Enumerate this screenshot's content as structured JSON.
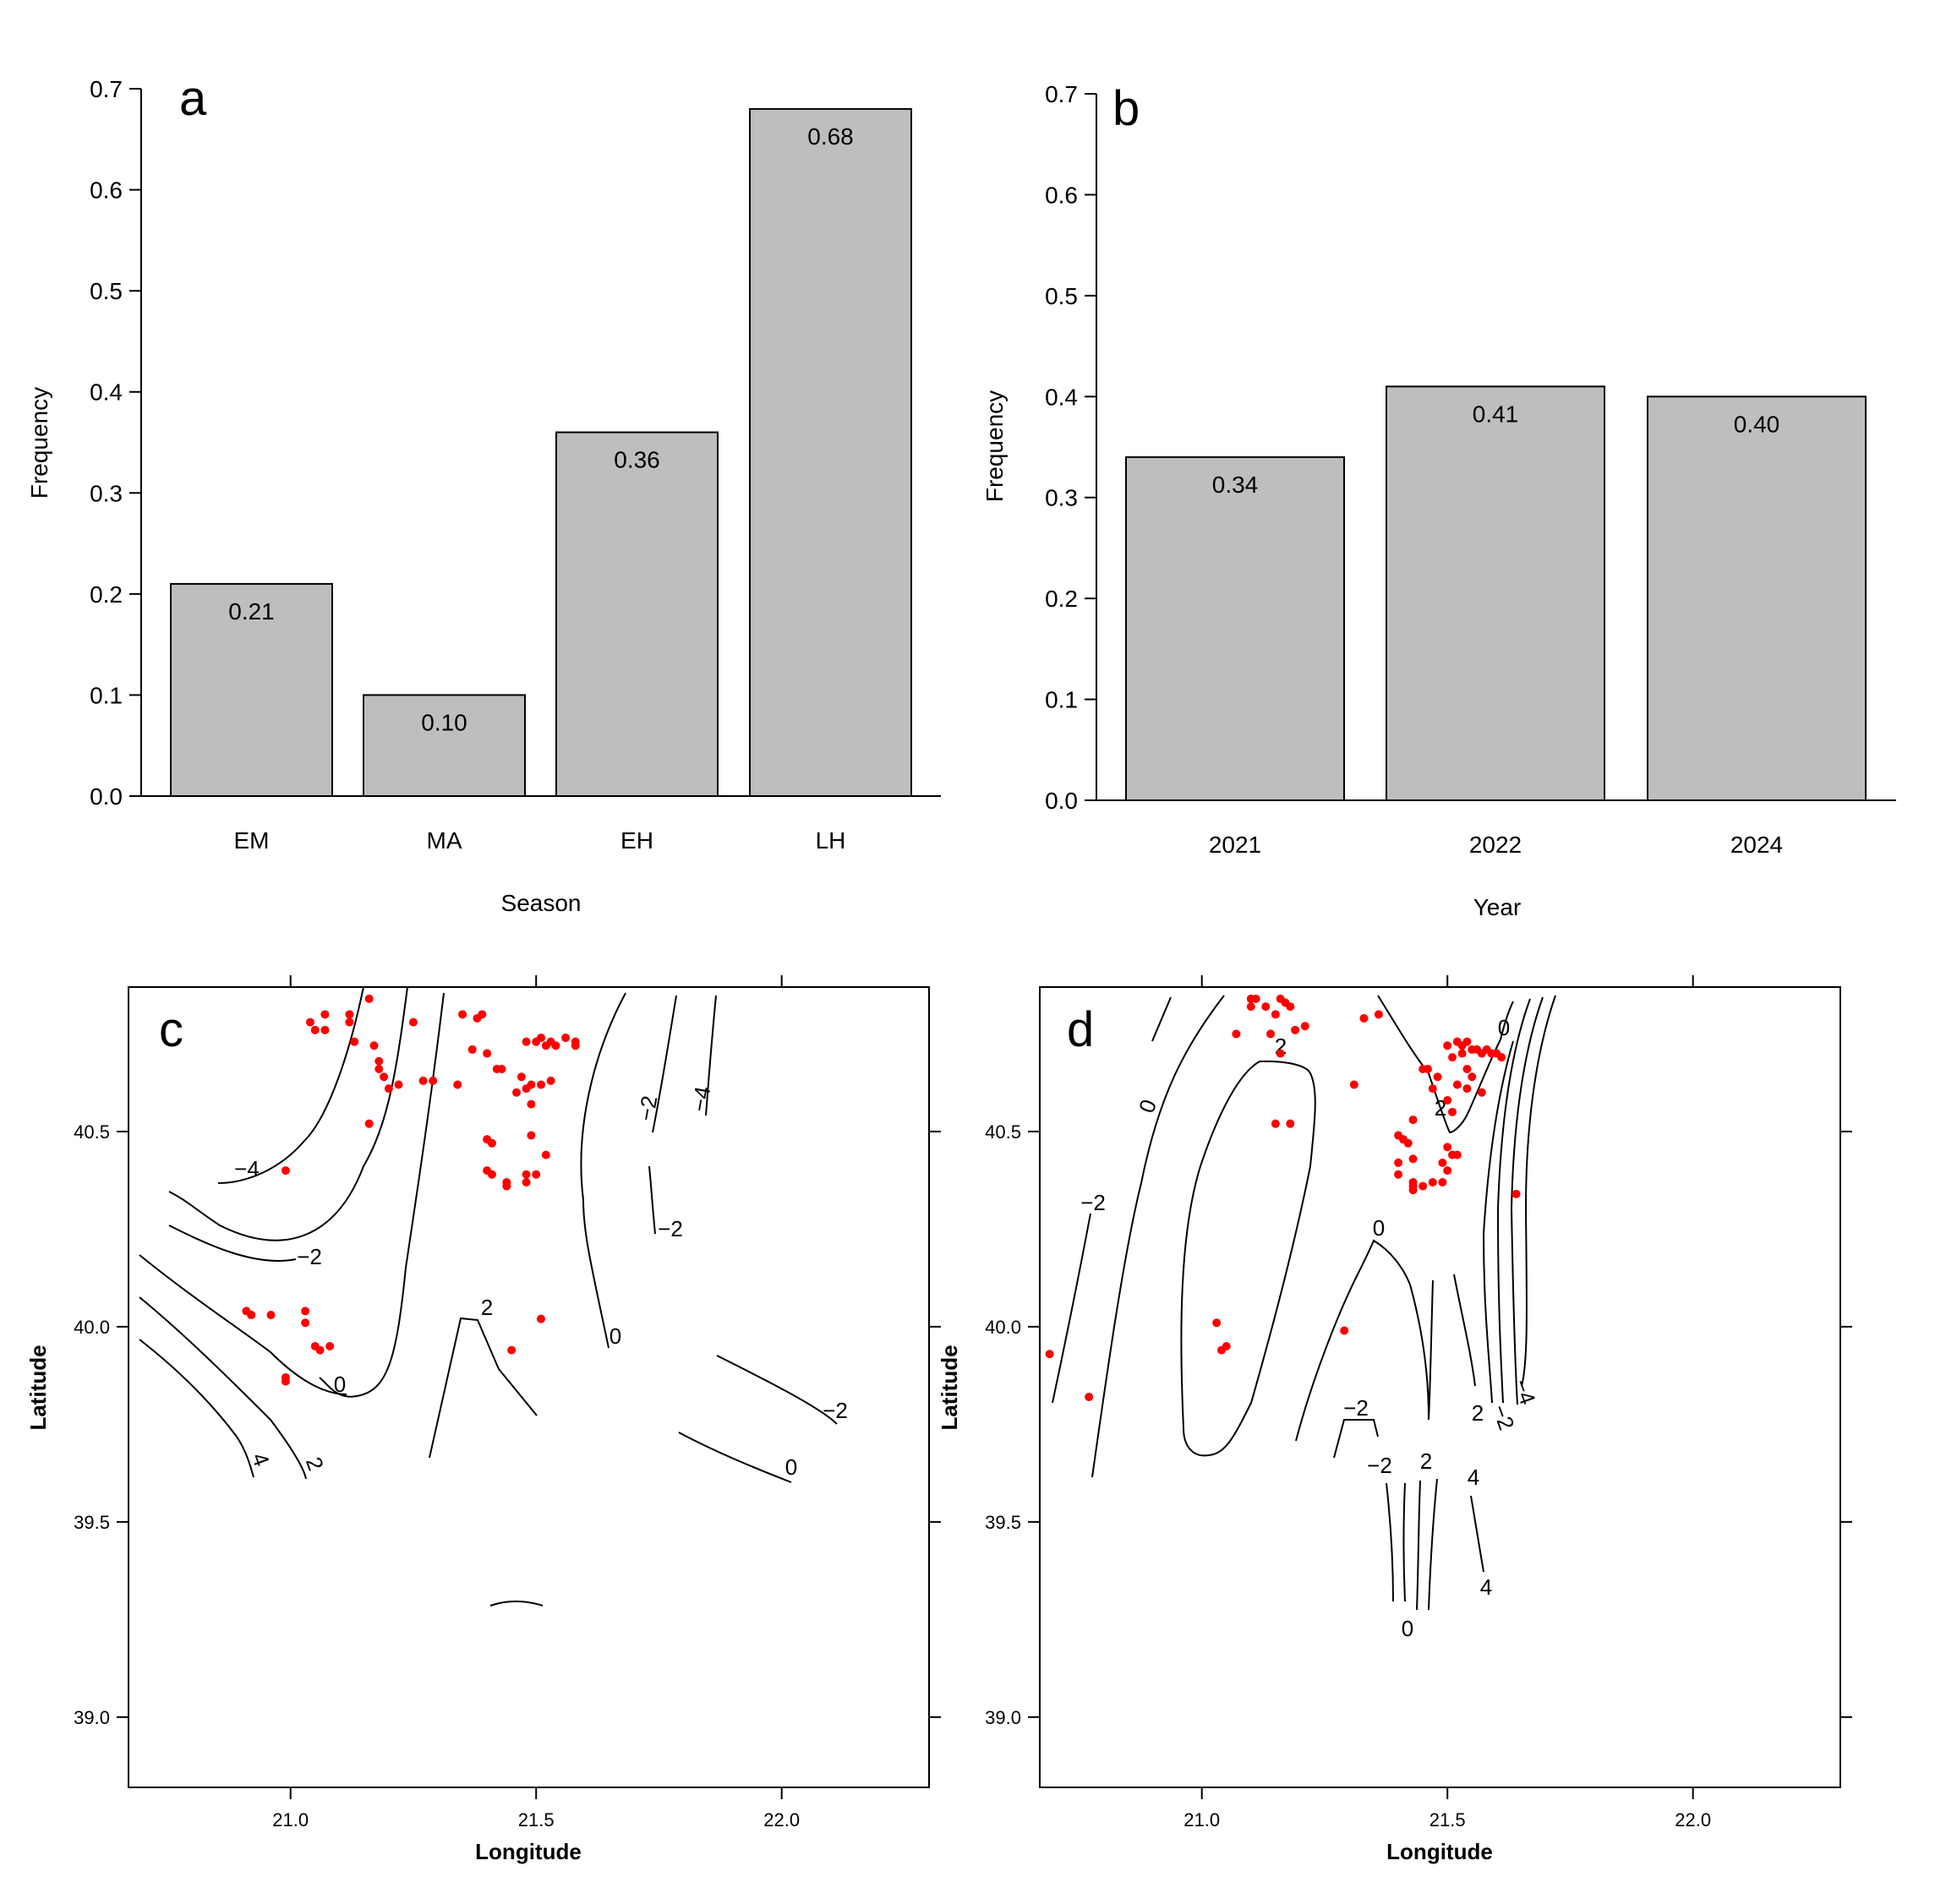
{
  "chart_data": [
    {
      "panel": "a",
      "type": "bar",
      "categories": [
        "EM",
        "MA",
        "EH",
        "LH"
      ],
      "values": [
        0.21,
        0.1,
        0.36,
        0.68
      ],
      "data_labels": [
        "0.21",
        "0.10",
        "0.36",
        "0.68"
      ],
      "xlabel": "Season",
      "ylabel": "Frequency",
      "ylim": [
        0,
        0.7
      ],
      "yticks": [
        "0.0",
        "0.1",
        "0.2",
        "0.3",
        "0.4",
        "0.5",
        "0.6",
        "0.7"
      ],
      "bar_color": "#bebebe"
    },
    {
      "panel": "b",
      "type": "bar",
      "categories": [
        "2021",
        "2022",
        "2024"
      ],
      "values": [
        0.34,
        0.41,
        0.4
      ],
      "data_labels": [
        "0.34",
        "0.41",
        "0.40"
      ],
      "xlabel": "Year",
      "ylabel": "Frequency",
      "ylim": [
        0,
        0.7
      ],
      "yticks": [
        "0.0",
        "0.1",
        "0.2",
        "0.3",
        "0.4",
        "0.5",
        "0.6",
        "0.7"
      ],
      "bar_color": "#bebebe"
    },
    {
      "panel": "c",
      "type": "scatter",
      "xlabel": "Longitude",
      "ylabel": "Latitude",
      "xlim": [
        20.67,
        22.3
      ],
      "ylim": [
        38.82,
        40.87
      ],
      "xticks": [
        "21.0",
        "21.5",
        "22.0"
      ],
      "yticks": [
        "39.0",
        "39.5",
        "40.0",
        "40.5"
      ],
      "point_color": "#ff0000",
      "points": [
        [
          21.04,
          40.78
        ],
        [
          21.05,
          40.76
        ],
        [
          21.07,
          40.8
        ],
        [
          21.07,
          40.76
        ],
        [
          21.12,
          40.8
        ],
        [
          21.12,
          40.78
        ],
        [
          21.13,
          40.73
        ],
        [
          21.16,
          40.84
        ],
        [
          21.17,
          40.72
        ],
        [
          21.18,
          40.68
        ],
        [
          21.18,
          40.66
        ],
        [
          21.19,
          40.64
        ],
        [
          21.2,
          40.61
        ],
        [
          21.22,
          40.62
        ],
        [
          21.25,
          40.78
        ],
        [
          21.27,
          40.63
        ],
        [
          21.29,
          40.63
        ],
        [
          21.34,
          40.62
        ],
        [
          21.35,
          40.8
        ],
        [
          21.38,
          40.79
        ],
        [
          21.39,
          40.8
        ],
        [
          21.37,
          40.71
        ],
        [
          21.4,
          40.7
        ],
        [
          21.42,
          40.66
        ],
        [
          21.43,
          40.66
        ],
        [
          21.47,
          40.64
        ],
        [
          21.48,
          40.61
        ],
        [
          21.49,
          40.62
        ],
        [
          21.5,
          40.73
        ],
        [
          21.51,
          40.74
        ],
        [
          21.52,
          40.72
        ],
        [
          21.53,
          40.73
        ],
        [
          21.54,
          40.72
        ],
        [
          21.56,
          40.74
        ],
        [
          21.58,
          40.73
        ],
        [
          21.58,
          40.72
        ],
        [
          21.48,
          40.73
        ],
        [
          21.51,
          40.62
        ],
        [
          21.53,
          40.63
        ],
        [
          21.46,
          40.6
        ],
        [
          21.49,
          40.57
        ],
        [
          21.4,
          40.48
        ],
        [
          21.41,
          40.47
        ],
        [
          21.49,
          40.49
        ],
        [
          21.52,
          40.44
        ],
        [
          21.4,
          40.4
        ],
        [
          21.41,
          40.39
        ],
        [
          21.44,
          40.37
        ],
        [
          21.44,
          40.36
        ],
        [
          21.48,
          40.39
        ],
        [
          21.5,
          40.39
        ],
        [
          21.48,
          40.37
        ],
        [
          21.16,
          40.52
        ],
        [
          20.99,
          40.4
        ],
        [
          20.91,
          40.04
        ],
        [
          20.92,
          40.03
        ],
        [
          20.96,
          40.03
        ],
        [
          21.03,
          40.04
        ],
        [
          21.03,
          40.01
        ],
        [
          21.05,
          39.95
        ],
        [
          21.06,
          39.94
        ],
        [
          21.08,
          39.95
        ],
        [
          20.99,
          39.87
        ],
        [
          20.99,
          39.86
        ],
        [
          21.51,
          40.02
        ],
        [
          21.45,
          39.94
        ]
      ],
      "contour_labels": [
        "-4",
        "-2",
        "0",
        "2",
        "4",
        "2",
        "-2",
        "-4",
        "-2",
        "0",
        "-2",
        "0"
      ]
    },
    {
      "panel": "d",
      "type": "scatter",
      "xlabel": "Longitude",
      "ylabel": "Latitude",
      "xlim": [
        20.67,
        22.3
      ],
      "ylim": [
        38.82,
        40.87
      ],
      "xticks": [
        "21.0",
        "21.5",
        "22.0"
      ],
      "yticks": [
        "39.0",
        "39.5",
        "40.0",
        "40.5"
      ],
      "point_color": "#ff0000",
      "points": [
        [
          21.1,
          40.84
        ],
        [
          21.1,
          40.82
        ],
        [
          21.11,
          40.84
        ],
        [
          21.13,
          40.82
        ],
        [
          21.15,
          40.8
        ],
        [
          21.16,
          40.84
        ],
        [
          21.17,
          40.83
        ],
        [
          21.18,
          40.82
        ],
        [
          21.19,
          40.76
        ],
        [
          21.21,
          40.77
        ],
        [
          21.07,
          40.75
        ],
        [
          21.14,
          40.75
        ],
        [
          21.16,
          40.7
        ],
        [
          21.33,
          40.79
        ],
        [
          21.36,
          40.8
        ],
        [
          21.31,
          40.62
        ],
        [
          21.45,
          40.66
        ],
        [
          21.46,
          40.66
        ],
        [
          21.48,
          40.64
        ],
        [
          21.5,
          40.72
        ],
        [
          21.51,
          40.69
        ],
        [
          21.52,
          40.73
        ],
        [
          21.53,
          40.72
        ],
        [
          21.53,
          40.7
        ],
        [
          21.54,
          40.73
        ],
        [
          21.55,
          40.71
        ],
        [
          21.56,
          40.71
        ],
        [
          21.57,
          40.7
        ],
        [
          21.58,
          40.71
        ],
        [
          21.59,
          40.7
        ],
        [
          21.6,
          40.7
        ],
        [
          21.61,
          40.69
        ],
        [
          21.54,
          40.66
        ],
        [
          21.55,
          40.64
        ],
        [
          21.52,
          40.62
        ],
        [
          21.54,
          40.61
        ],
        [
          21.57,
          40.6
        ],
        [
          21.47,
          40.61
        ],
        [
          21.5,
          40.58
        ],
        [
          21.51,
          40.55
        ],
        [
          21.43,
          40.53
        ],
        [
          21.4,
          40.49
        ],
        [
          21.41,
          40.48
        ],
        [
          21.42,
          40.47
        ],
        [
          21.5,
          40.46
        ],
        [
          21.51,
          40.44
        ],
        [
          21.52,
          40.44
        ],
        [
          21.4,
          40.42
        ],
        [
          21.43,
          40.43
        ],
        [
          21.49,
          40.42
        ],
        [
          21.5,
          40.4
        ],
        [
          21.4,
          40.39
        ],
        [
          21.43,
          40.37
        ],
        [
          21.43,
          40.36
        ],
        [
          21.45,
          40.36
        ],
        [
          21.47,
          40.37
        ],
        [
          21.49,
          40.37
        ],
        [
          21.43,
          40.35
        ],
        [
          21.64,
          40.34
        ],
        [
          21.15,
          40.52
        ],
        [
          21.18,
          40.52
        ],
        [
          21.03,
          40.01
        ],
        [
          21.04,
          39.94
        ],
        [
          21.05,
          39.95
        ],
        [
          21.29,
          39.99
        ],
        [
          20.69,
          39.93
        ],
        [
          20.77,
          39.82
        ]
      ],
      "contour_labels": [
        "0",
        "2",
        "2",
        "0",
        "-2",
        "0",
        "-2",
        "-2",
        "2",
        "4",
        "2",
        "-2",
        "-4",
        "4",
        "0"
      ]
    }
  ],
  "panel_letters": {
    "a": "a",
    "b": "b",
    "c": "c",
    "d": "d"
  }
}
